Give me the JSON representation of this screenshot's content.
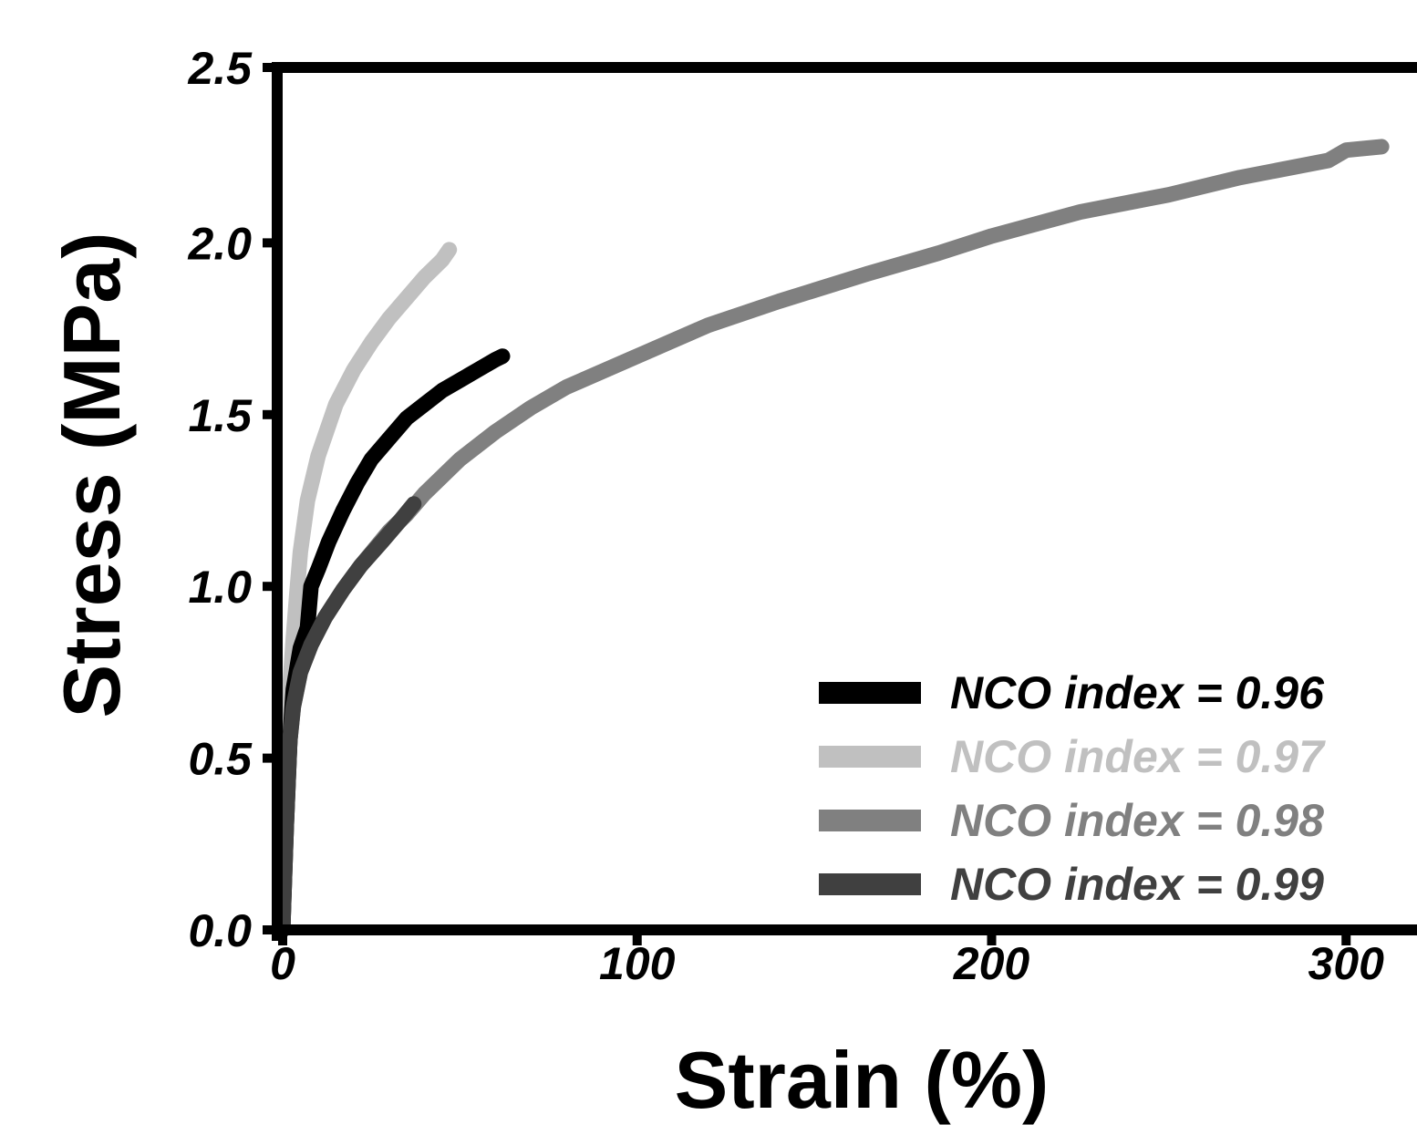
{
  "chart_data": {
    "type": "line",
    "title": "",
    "xlabel": "Strain (%)",
    "ylabel": "Stress (MPa)",
    "xlim": [
      0,
      320
    ],
    "ylim": [
      0,
      2.5
    ],
    "x_ticks": [
      0,
      100,
      200,
      300
    ],
    "y_ticks": [
      0.0,
      0.5,
      1.0,
      1.5,
      2.0,
      2.5
    ],
    "x_tick_labels": [
      "0",
      "100",
      "200",
      "300"
    ],
    "y_tick_labels": [
      "0.0",
      "0.5",
      "1.0",
      "1.5",
      "2.0",
      "2.5"
    ],
    "grid": false,
    "legend_position": "bottom-right",
    "series": [
      {
        "name": "NCO index = 0.96",
        "color": "#000000",
        "x": [
          0,
          1,
          2,
          3,
          5,
          7,
          8,
          10,
          13,
          17,
          21,
          25,
          30,
          35,
          40,
          45,
          50,
          55,
          60,
          62
        ],
        "y": [
          0,
          0.3,
          0.55,
          0.7,
          0.82,
          0.88,
          1.0,
          1.05,
          1.13,
          1.22,
          1.3,
          1.37,
          1.43,
          1.49,
          1.53,
          1.57,
          1.6,
          1.63,
          1.66,
          1.67
        ]
      },
      {
        "name": "NCO index = 0.97",
        "color": "#c0c0c0",
        "x": [
          0,
          1,
          2,
          3,
          4,
          5,
          7,
          10,
          15,
          20,
          25,
          30,
          35,
          40,
          45,
          47
        ],
        "y": [
          0,
          0.45,
          0.7,
          0.85,
          0.98,
          1.1,
          1.25,
          1.38,
          1.53,
          1.63,
          1.71,
          1.78,
          1.84,
          1.9,
          1.95,
          1.98
        ]
      },
      {
        "name": "NCO index = 0.98",
        "color": "#808080",
        "x": [
          0,
          1,
          2,
          3,
          5,
          8,
          12,
          17,
          22,
          30,
          35,
          40,
          50,
          60,
          70,
          80,
          100,
          120,
          140,
          165,
          185,
          200,
          225,
          250,
          270,
          295,
          300,
          310
        ],
        "y": [
          0,
          0.35,
          0.55,
          0.65,
          0.75,
          0.83,
          0.91,
          0.99,
          1.06,
          1.16,
          1.21,
          1.27,
          1.37,
          1.45,
          1.52,
          1.58,
          1.67,
          1.76,
          1.83,
          1.91,
          1.97,
          2.02,
          2.09,
          2.14,
          2.19,
          2.24,
          2.27,
          2.28
        ]
      },
      {
        "name": "NCO index = 0.99",
        "color": "#404040",
        "x": [
          0,
          1,
          2,
          3,
          5,
          8,
          12,
          17,
          22,
          28,
          33,
          37
        ],
        "y": [
          0,
          0.3,
          0.55,
          0.65,
          0.75,
          0.83,
          0.91,
          0.99,
          1.06,
          1.13,
          1.19,
          1.24
        ]
      }
    ]
  }
}
